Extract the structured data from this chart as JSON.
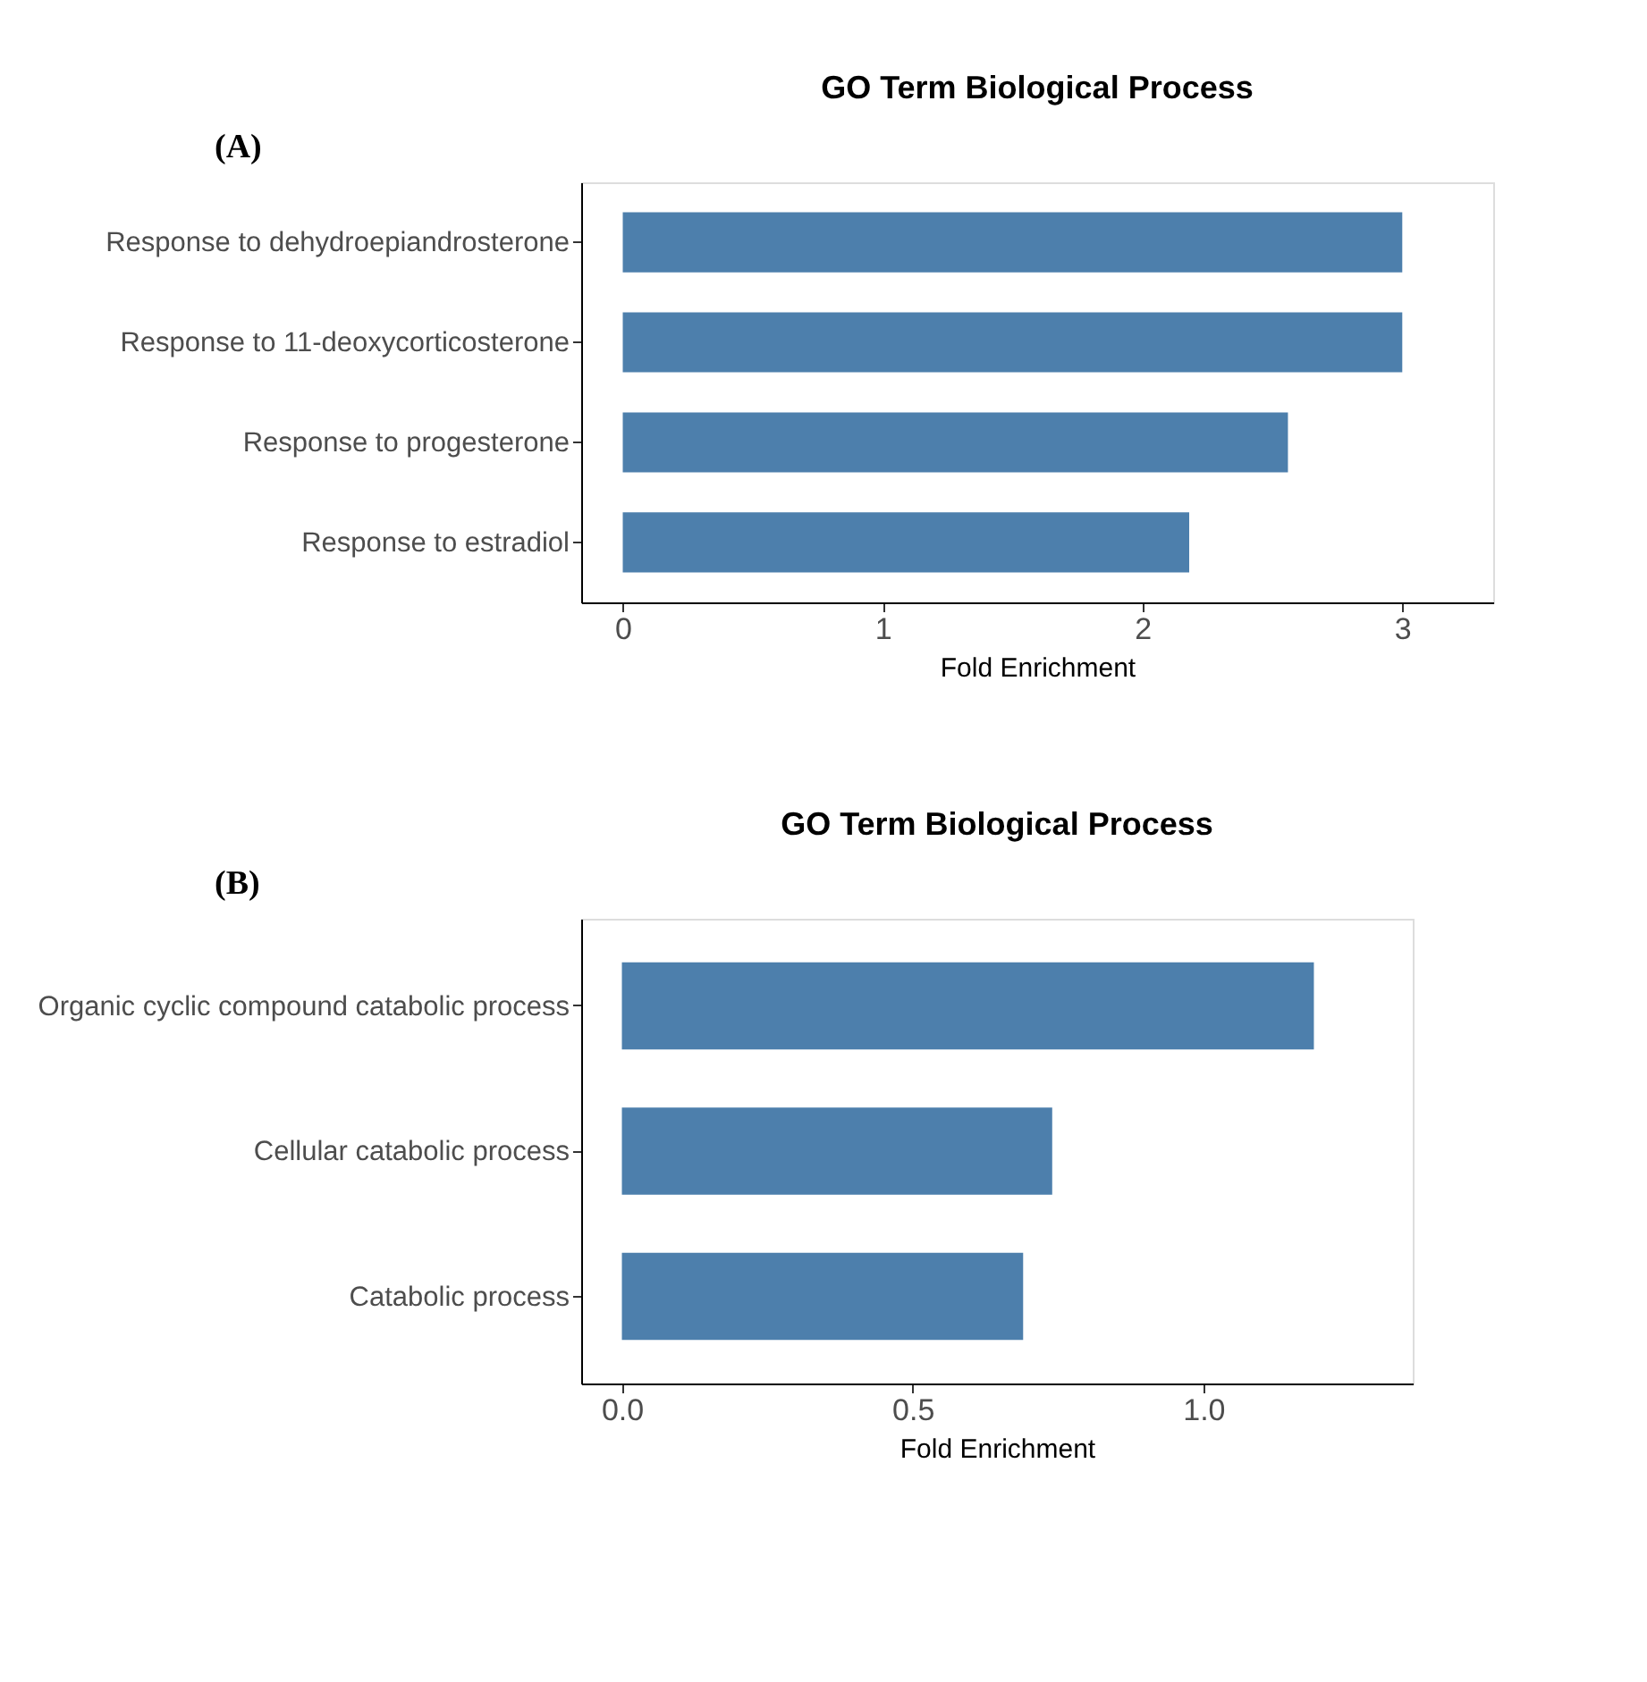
{
  "chart_data": [
    {
      "type": "bar",
      "orientation": "horizontal",
      "title": "GO Term Biological Process",
      "xlabel": "Fold Enrichment",
      "annotations": [
        "(A)"
      ],
      "categories": [
        "Response to dehydroepiandrosterone",
        "Response to 11-deoxycorticosterone",
        "Response to progesterone",
        "Response to estradiol"
      ],
      "values": [
        3.0,
        3.0,
        2.56,
        2.18
      ],
      "color": "#4d7fac",
      "xlim": [
        -0.16,
        3.35
      ],
      "xticks": [
        0,
        1,
        2,
        3
      ],
      "grid": false
    },
    {
      "type": "bar",
      "orientation": "horizontal",
      "title": "GO Term Biological Process",
      "xlabel": "Fold Enrichment",
      "annotations": [
        "(B)"
      ],
      "categories": [
        "Organic cyclic compound catabolic process",
        "Cellular catabolic process",
        "Catabolic process"
      ],
      "values": [
        1.19,
        0.74,
        0.69
      ],
      "color": "#4d7fac",
      "xlim": [
        -0.07,
        1.36
      ],
      "xticks": [
        {
          "value": 0,
          "label": "0.0"
        },
        {
          "value": 0.5,
          "label": "0.5"
        },
        {
          "value": 1,
          "label": "1.0"
        }
      ],
      "grid": false
    }
  ]
}
